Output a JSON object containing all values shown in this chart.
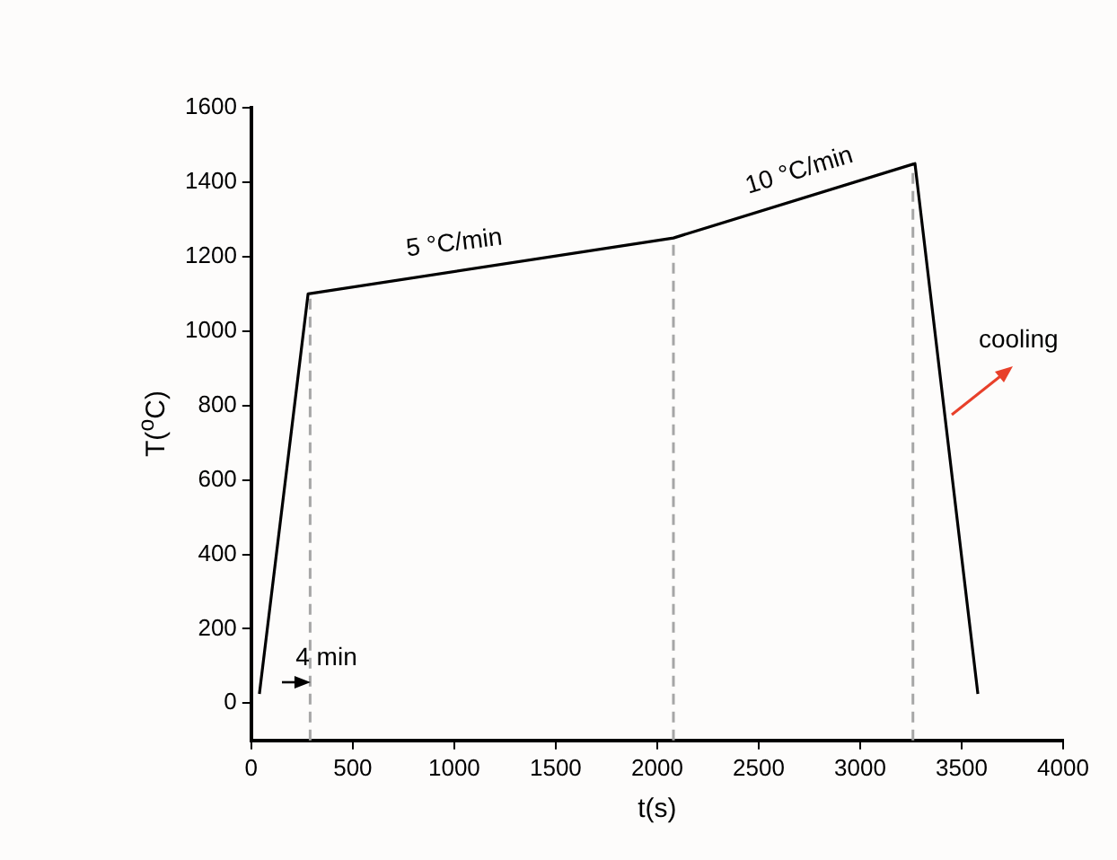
{
  "chart_data": {
    "type": "line",
    "xlabel": "t(s)",
    "ylabel": "T($^{o}$C)",
    "x": [
      40,
      280,
      2080,
      3270,
      3580
    ],
    "series": [
      {
        "color": "#000000",
        "values": [
          25,
          1100,
          1250,
          1450,
          25
        ]
      }
    ],
    "xlim": [
      0,
      4000
    ],
    "xticks": [
      0,
      500,
      1000,
      1500,
      2000,
      2500,
      3000,
      3500,
      4000
    ],
    "ylim": [
      -100,
      1600
    ],
    "yticks": [
      0,
      200,
      400,
      600,
      800,
      1000,
      1200,
      1400,
      1600
    ],
    "ref_lines": [
      {
        "axis": "x",
        "value": 290,
        "color": "#a6a6a6",
        "line_style": "dashed"
      },
      {
        "axis": "x",
        "value": 2080,
        "color": "#a6a6a6",
        "line_style": "dashed"
      },
      {
        "axis": "x",
        "value": 3260,
        "color": "#a6a6a6",
        "line_style": "dashed"
      }
    ],
    "annotations": [
      "5 °C/min",
      "10 °C/min",
      "cooling",
      "4 min"
    ],
    "grid": false,
    "legend": false,
    "marker": "none",
    "line_style": "solid"
  }
}
